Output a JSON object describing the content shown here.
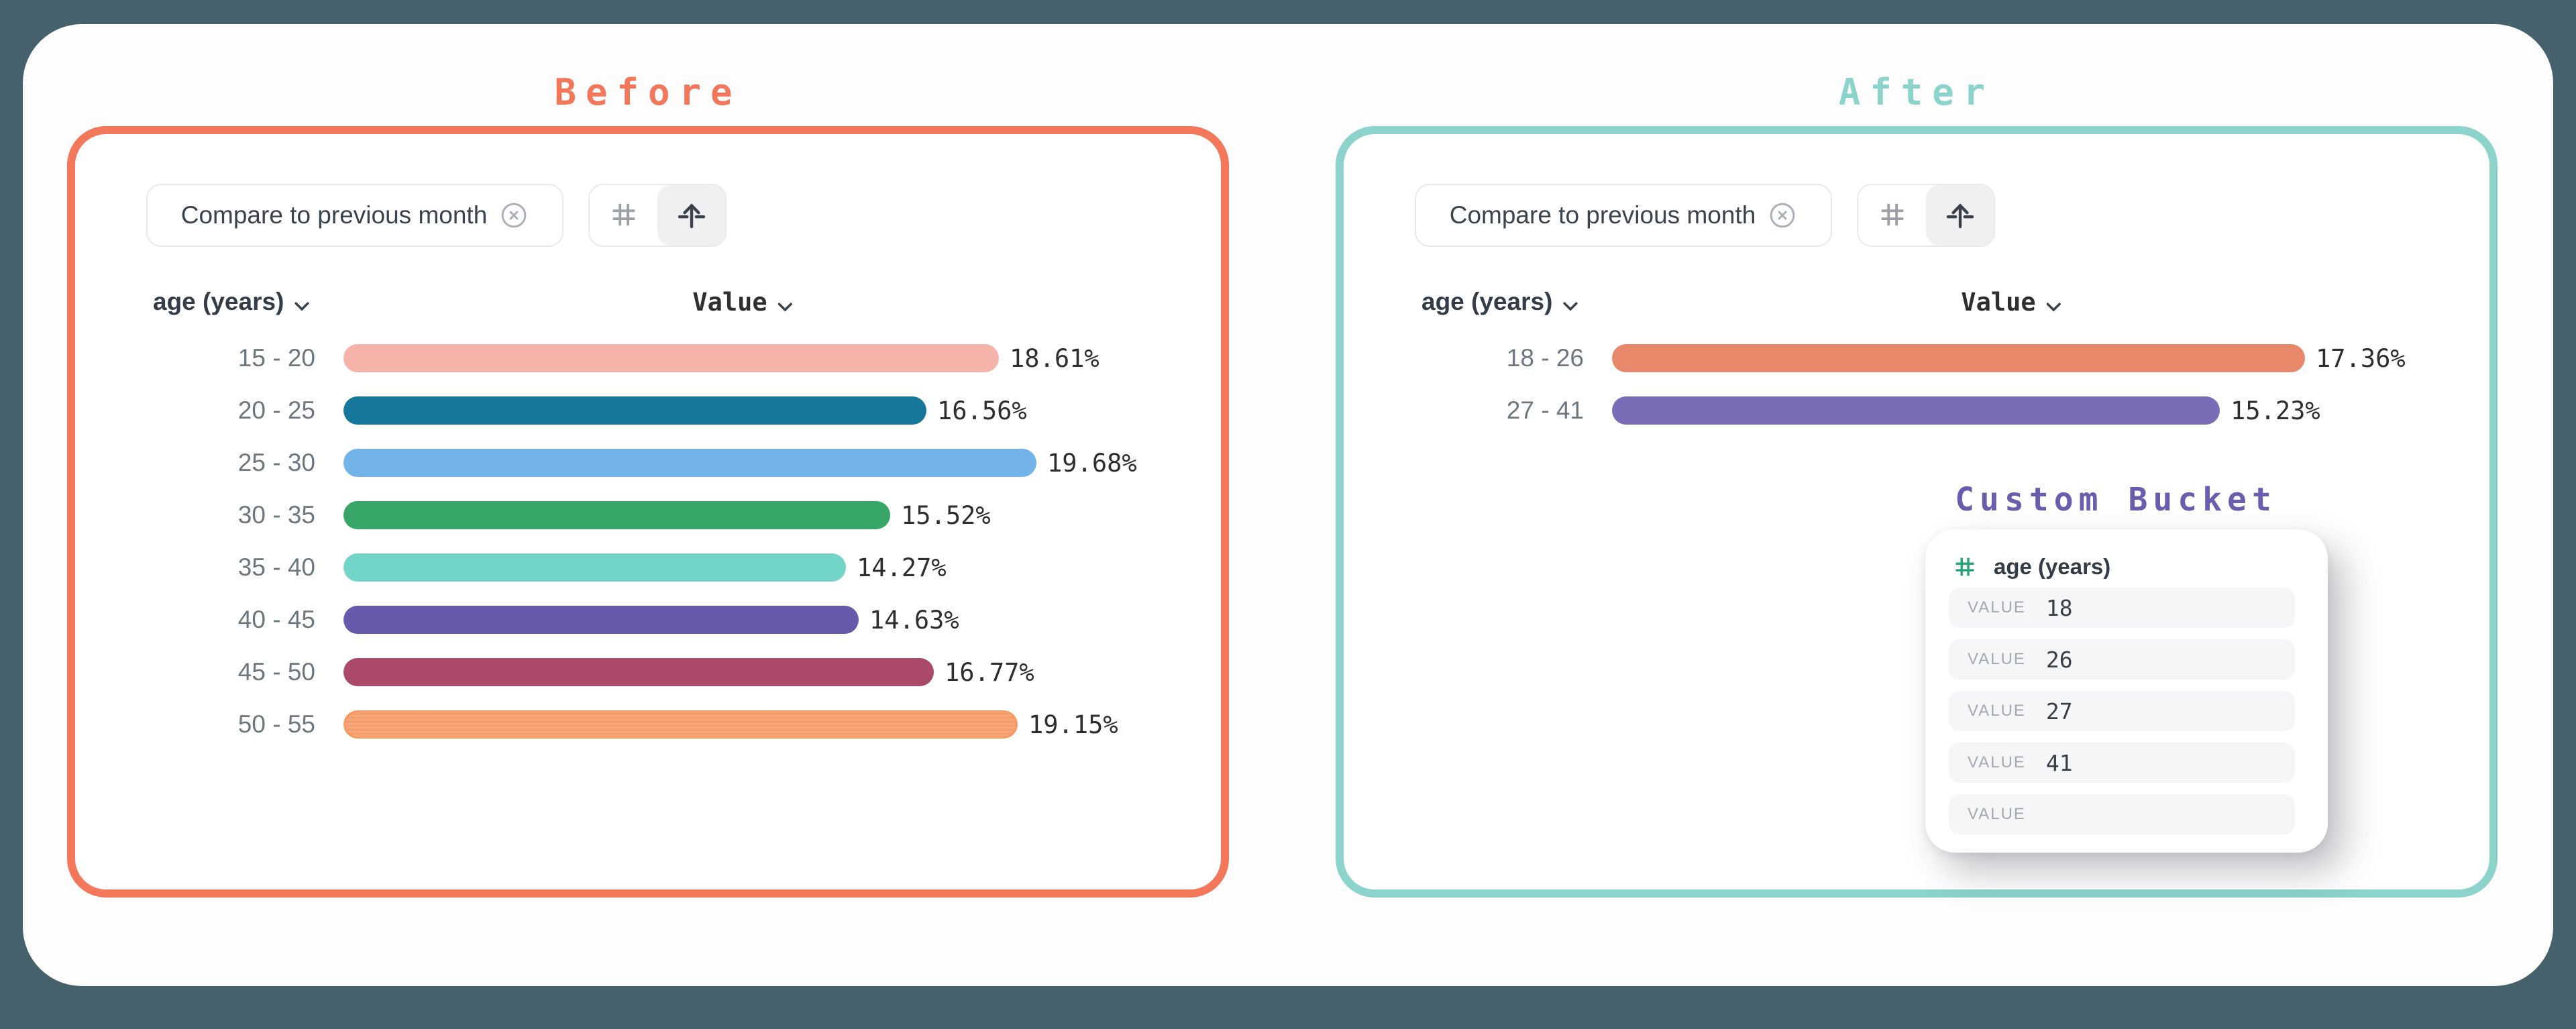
{
  "page": {
    "background_color": "#46616B",
    "card_background": "#FFFFFF"
  },
  "icons": {
    "numeric_field": "#",
    "custom_bucket_arrow": "↑",
    "remove_filter": "⊗",
    "sort_chevron": "⌄"
  },
  "before_panel": {
    "title": "Before",
    "accent_color": "#F3775B",
    "filter_chip": {
      "label": "Compare to previous month"
    },
    "columns": {
      "dimension": "age (years)",
      "measure": "Value"
    },
    "rows": [
      {
        "label": "15 - 20",
        "value": 18.61,
        "display": "18.61%",
        "color": "#F5B3A9"
      },
      {
        "label": "20 - 25",
        "value": 16.56,
        "display": "16.56%",
        "color": "#15789B"
      },
      {
        "label": "25 - 30",
        "value": 19.68,
        "display": "19.68%",
        "color": "#72B4E9"
      },
      {
        "label": "30 - 35",
        "value": 15.52,
        "display": "15.52%",
        "color": "#38A669"
      },
      {
        "label": "35 - 40",
        "value": 14.27,
        "display": "14.27%",
        "color": "#73D5C7"
      },
      {
        "label": "40 - 45",
        "value": 14.63,
        "display": "14.63%",
        "color": "#655AAB"
      },
      {
        "label": "45 - 50",
        "value": 16.77,
        "display": "16.77%",
        "color": "#AB4A68"
      },
      {
        "label": "50 - 55",
        "value": 19.15,
        "display": "19.15%",
        "color": "#F7A678",
        "striped": true
      }
    ]
  },
  "after_panel": {
    "title": "After",
    "accent_color": "#8BD3CB",
    "filter_chip": {
      "label": "Compare to previous month"
    },
    "columns": {
      "dimension": "age (years)",
      "measure": "Value"
    },
    "rows": [
      {
        "label": "18 - 26",
        "value": 17.36,
        "display": "17.36%",
        "color": "#E8886B"
      },
      {
        "label": "27 - 41",
        "value": 15.23,
        "display": "15.23%",
        "color": "#7A6CB5"
      }
    ],
    "custom_bucket": {
      "title": "Custom Bucket",
      "title_color": "#6A5DAE",
      "field": "age (years)",
      "field_icon_color": "#2AA478",
      "value_label": "VALUE",
      "values": [
        "18",
        "26",
        "27",
        "41",
        ""
      ]
    }
  },
  "chart_data": [
    {
      "type": "bar",
      "orientation": "horizontal",
      "title": "Before",
      "categories": [
        "15 - 20",
        "20 - 25",
        "25 - 30",
        "30 - 35",
        "35 - 40",
        "40 - 45",
        "45 - 50",
        "50 - 55"
      ],
      "values": [
        18.61,
        16.56,
        19.68,
        15.52,
        14.27,
        14.63,
        16.77,
        19.15
      ],
      "value_labels": [
        "18.61%",
        "16.56%",
        "19.68%",
        "15.52%",
        "14.27%",
        "14.63%",
        "16.77%",
        "19.15%"
      ],
      "colors": [
        "#F5B3A9",
        "#15789B",
        "#72B4E9",
        "#38A669",
        "#73D5C7",
        "#655AAB",
        "#AB4A68",
        "#F7A678"
      ],
      "xlabel": "Value",
      "ylabel": "age (years)",
      "unit": "%",
      "scaling": "bars scaled to panel max value",
      "grid": false,
      "legend": false
    },
    {
      "type": "bar",
      "orientation": "horizontal",
      "title": "After",
      "categories": [
        "18 - 26",
        "27 - 41"
      ],
      "values": [
        17.36,
        15.23
      ],
      "value_labels": [
        "17.36%",
        "15.23%"
      ],
      "colors": [
        "#E8886B",
        "#7A6CB5"
      ],
      "xlabel": "Value",
      "ylabel": "age (years)",
      "unit": "%",
      "scaling": "bars scaled to panel max value",
      "grid": false,
      "legend": false
    }
  ]
}
